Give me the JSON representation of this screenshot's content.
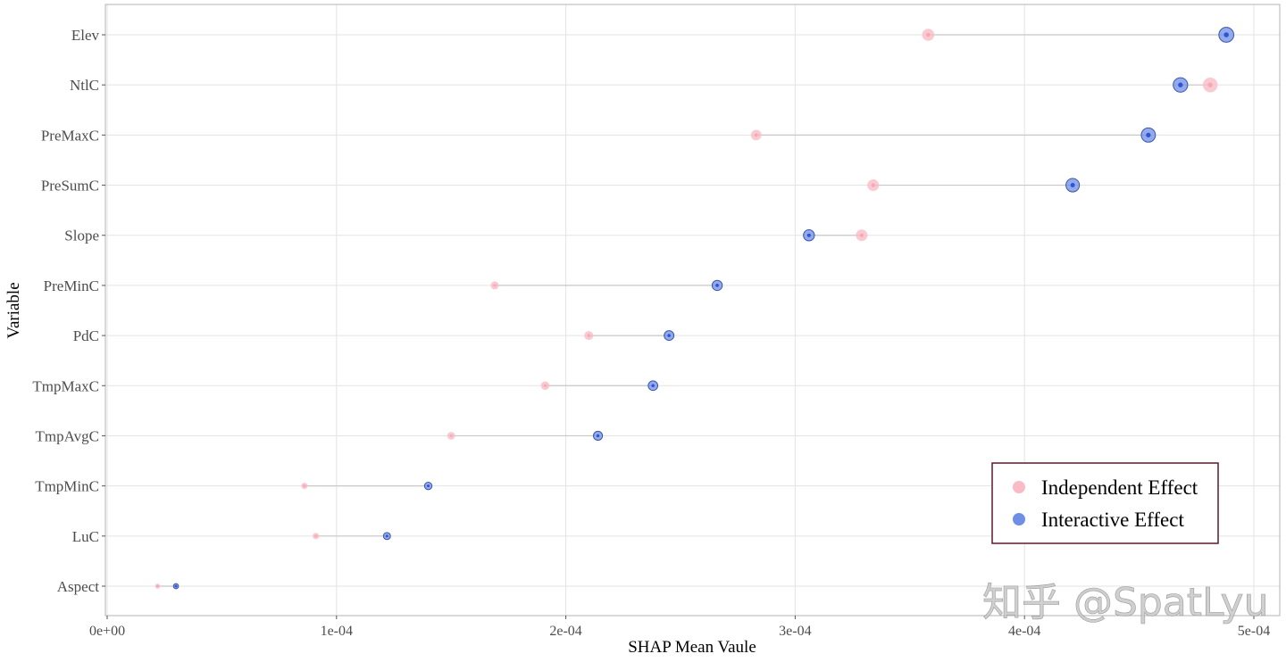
{
  "chart_data": {
    "type": "dumbbell",
    "xlabel": "SHAP Mean Vaule",
    "ylabel": "Variable",
    "xlim": [
      0,
      0.0005
    ],
    "x_ticks": [
      0,
      0.0001,
      0.0002,
      0.0003,
      0.0004,
      0.0005
    ],
    "x_tick_labels": [
      "0e+00",
      "1e-04",
      "2e-04",
      "3e-04",
      "4e-04",
      "5e-04"
    ],
    "grid": true,
    "legend_position": "bottom-right",
    "categories": [
      "Elev",
      "NtlC",
      "PreMaxC",
      "PreSumC",
      "Slope",
      "PreMinC",
      "PdC",
      "TmpMaxC",
      "TmpAvgC",
      "TmpMinC",
      "LuC",
      "Aspect"
    ],
    "series": [
      {
        "name": "Independent Effect",
        "color": "#f9bcc6",
        "values": [
          0.000358,
          0.000481,
          0.000283,
          0.000334,
          0.000329,
          0.000169,
          0.00021,
          0.000191,
          0.00015,
          8.6e-05,
          9.1e-05,
          2.2e-05
        ]
      },
      {
        "name": "Interactive Effect",
        "color": "#6f8fe6",
        "values": [
          0.000488,
          0.000468,
          0.000454,
          0.000421,
          0.000306,
          0.000266,
          0.000245,
          0.000238,
          0.000214,
          0.00014,
          0.000122,
          3e-05
        ]
      }
    ]
  },
  "watermark": "知乎 @SpatLyu"
}
